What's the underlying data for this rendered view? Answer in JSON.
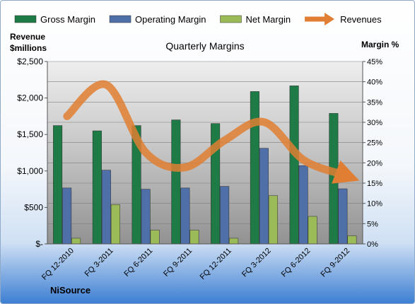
{
  "chart_data": {
    "type": "bar",
    "title": "Quarterly Margins",
    "categories": [
      "FQ 12-2010",
      "FQ 3-2011",
      "FQ 6-2011",
      "FQ 9-2011",
      "FQ 12-2011",
      "FQ 3-2012",
      "FQ 6-2012",
      "FQ 9-2012"
    ],
    "series": [
      {
        "name": "Gross Margin",
        "axis": "right",
        "color": "#1e7b45",
        "values": [
          29.2,
          27.9,
          29.2,
          30.6,
          29.7,
          37.6,
          39.0,
          32.2
        ]
      },
      {
        "name": "Operating Margin",
        "axis": "right",
        "color": "#4f6fa8",
        "values": [
          13.8,
          18.2,
          13.5,
          13.8,
          14.2,
          23.6,
          19.3,
          13.6
        ]
      },
      {
        "name": "Net Margin",
        "axis": "right",
        "color": "#9bbb59",
        "values": [
          1.4,
          9.7,
          3.4,
          3.4,
          1.4,
          11.9,
          6.8,
          2.0
        ]
      },
      {
        "name": "Revenues",
        "type": "line",
        "axis": "left",
        "color": "#e07f33",
        "values": [
          1750,
          2180,
          1250,
          1050,
          1420,
          1670,
          1150,
          950
        ]
      }
    ],
    "left_axis": {
      "label_line1": "Revenue",
      "label_line2": "$millions",
      "min": 0,
      "max": 2500,
      "ticks": [
        "$-",
        "$500",
        "$1,000",
        "$1,500",
        "$2,000",
        "$2,500"
      ]
    },
    "right_axis": {
      "label": "Margin %",
      "min": 0,
      "max": 45,
      "ticks": [
        "0%",
        "5%",
        "10%",
        "15%",
        "20%",
        "25%",
        "30%",
        "35%",
        "40%",
        "45%"
      ]
    },
    "legend_position": "top",
    "grid": true,
    "footer": "NiSource"
  }
}
